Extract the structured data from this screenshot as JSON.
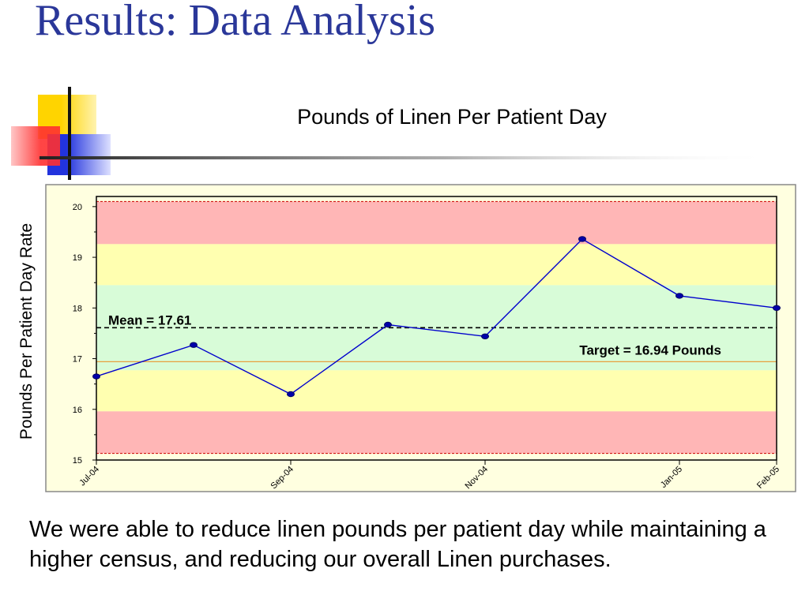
{
  "slide": {
    "title": "Results:  Data Analysis",
    "caption": "We were able to reduce linen pounds per patient day while maintaining a higher census, and reducing our overall Linen purchases."
  },
  "colors": {
    "title": "#2a3799",
    "plot_background": "#ffffe0",
    "band_red": "#ffb6b6",
    "band_yellow": "#ffffb0",
    "band_green": "#d8fcd8",
    "series_line": "#0000cc",
    "limit_line": "#cc0000",
    "target_line": "#e8a040",
    "mean_line": "#000000"
  },
  "chart_data": {
    "type": "line",
    "title": "Pounds of Linen Per Patient Day",
    "ylabel": "Pounds Per Patient Day  Rate",
    "xlabel": "",
    "x_tick_labels": [
      "Jul-04",
      "Sep-04",
      "Nov-04",
      "Jan-05",
      "Feb-05"
    ],
    "x_tick_index": [
      0,
      2,
      4,
      6,
      7
    ],
    "ylim": [
      15,
      20.2
    ],
    "y_ticks": [
      15,
      16,
      17,
      18,
      19,
      20
    ],
    "series": [
      {
        "values": [
          16.65,
          17.27,
          16.3,
          17.67,
          17.44,
          19.36,
          18.24,
          18.0
        ]
      }
    ],
    "mean": {
      "label": "Mean = 17.61",
      "value": 17.61
    },
    "target": {
      "label": "Target = 16.94 Pounds",
      "value": 16.94
    },
    "control_limits": {
      "upper": 20.1,
      "lower": 15.13
    },
    "bands": [
      {
        "from": 19.26,
        "to": 20.1,
        "color": "red"
      },
      {
        "from": 18.45,
        "to": 19.26,
        "color": "yellow"
      },
      {
        "from": 16.77,
        "to": 18.45,
        "color": "green"
      },
      {
        "from": 15.96,
        "to": 16.77,
        "color": "yellow"
      },
      {
        "from": 15.13,
        "to": 15.96,
        "color": "red"
      }
    ],
    "grid": false
  }
}
